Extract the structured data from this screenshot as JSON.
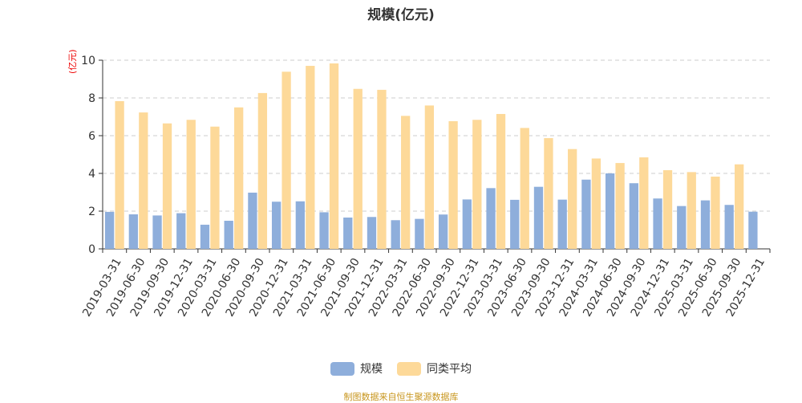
{
  "chart_data": {
    "type": "bar",
    "title": "规模(亿元)",
    "ylabel": "(亿元)",
    "xlabel": "",
    "ylim": [
      0,
      10
    ],
    "yticks": [
      0,
      2,
      4,
      6,
      8,
      10
    ],
    "grid": true,
    "legend_position": "bottom",
    "categories": [
      "2019-03-31",
      "2019-06-30",
      "2019-09-30",
      "2019-12-31",
      "2020-03-31",
      "2020-06-30",
      "2020-09-30",
      "2020-12-31",
      "2021-03-31",
      "2021-06-30",
      "2021-09-30",
      "2021-12-31",
      "2022-03-31",
      "2022-06-30",
      "2022-09-30",
      "2022-12-31",
      "2023-03-31",
      "2023-06-30",
      "2023-09-30",
      "2023-12-31",
      "2024-03-31",
      "2024-06-30",
      "2024-09-30",
      "2024-12-31",
      "2025-03-31",
      "2025-06-30",
      "2025-09-30",
      "2025-12-31"
    ],
    "series": [
      {
        "name": "规模",
        "color": "#8eaedb",
        "values": [
          1.96,
          1.83,
          1.77,
          1.89,
          1.28,
          1.49,
          2.98,
          2.5,
          2.52,
          1.94,
          1.66,
          1.69,
          1.52,
          1.59,
          1.82,
          2.62,
          3.22,
          2.6,
          3.29,
          2.61,
          3.67,
          4.0,
          3.48,
          2.67,
          2.27,
          2.57,
          2.33,
          1.97
        ]
      },
      {
        "name": "同类平均",
        "color": "#fdd999",
        "values": [
          7.83,
          7.23,
          6.65,
          6.84,
          6.48,
          7.5,
          8.26,
          9.39,
          9.7,
          9.83,
          8.48,
          8.43,
          7.05,
          7.6,
          6.77,
          6.84,
          7.15,
          6.41,
          5.87,
          5.29,
          4.79,
          4.55,
          4.85,
          4.17,
          4.07,
          3.83,
          4.48,
          null
        ]
      }
    ]
  },
  "source": "制图数据来自恒生聚源数据库"
}
